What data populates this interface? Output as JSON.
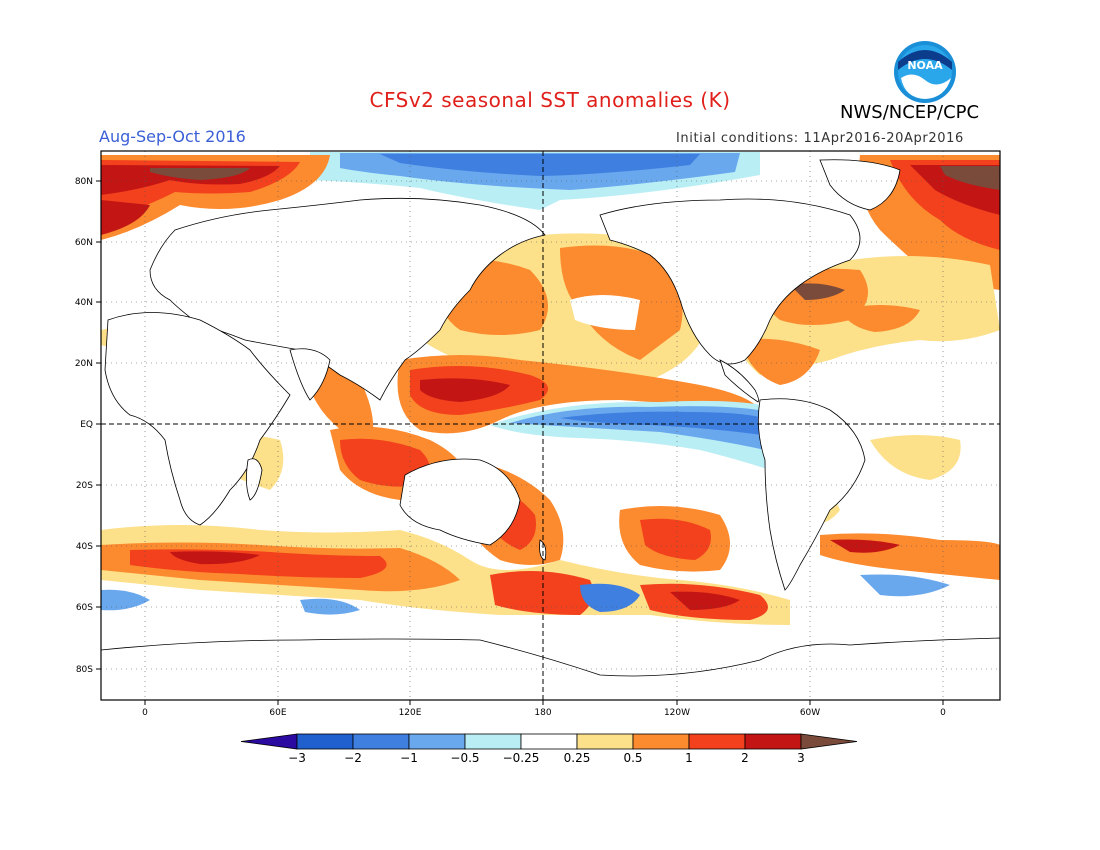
{
  "header": {
    "title": "CFSv2 seasonal SST anomalies (K)",
    "agency": "NWS/NCEP/CPC",
    "season": "Aug-Sep-Oct 2016",
    "initial_conditions": "Initial conditions: 11Apr2016-20Apr2016",
    "logo_text": "NOAA"
  },
  "axes": {
    "lat_labels": [
      "80N",
      "60N",
      "40N",
      "20N",
      "EQ",
      "20S",
      "40S",
      "60S",
      "80S"
    ],
    "lon_labels": [
      "0",
      "60E",
      "120E",
      "180",
      "120W",
      "60W",
      "0"
    ]
  },
  "colorbar": {
    "labels": [
      "-3",
      "-2",
      "-1",
      "-0.5",
      "-0.25",
      "0.25",
      "0.5",
      "1",
      "2",
      "3"
    ],
    "colors": [
      "#2a0aa0",
      "#1f5fce",
      "#3f7fe0",
      "#6aa8ee",
      "#b9eef5",
      "#ffffff",
      "#fde08a",
      "#fc8a2e",
      "#f2411c",
      "#c41515",
      "#7a4a3a"
    ]
  },
  "colors": {
    "title": "#e0201b",
    "season": "#3a5fd6",
    "land": "#ffffff",
    "coast": "#000000"
  }
}
